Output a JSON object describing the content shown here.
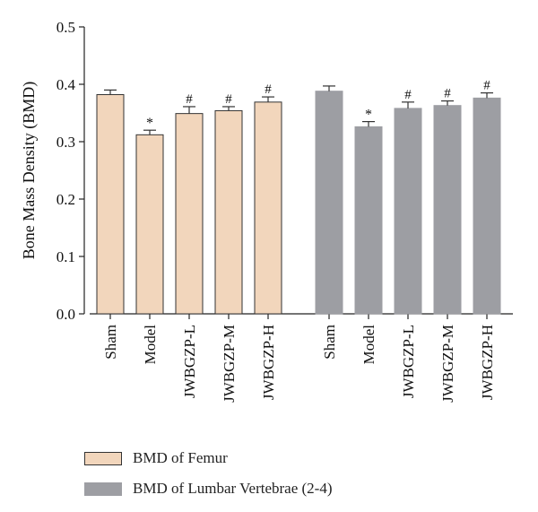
{
  "chart_data": {
    "type": "bar",
    "title": "",
    "xlabel": "",
    "ylabel": "Bone Mass Density (BMD)",
    "ylim": [
      0,
      0.5
    ],
    "yticks": [
      "0.0",
      "0.1",
      "0.2",
      "0.3",
      "0.4",
      "0.5"
    ],
    "grid": false,
    "legend_position": "bottom-left",
    "categories": [
      "Sham",
      "Model",
      "JWBGZP-L",
      "JWBGZP-M",
      "JWBGZP-H"
    ],
    "series": [
      {
        "name": "BMD of Femur",
        "color": "#f2d6bc",
        "stroke": "#333333",
        "values": [
          0.382,
          0.312,
          0.349,
          0.354,
          0.369
        ],
        "errors": [
          0.008,
          0.008,
          0.012,
          0.007,
          0.009
        ],
        "marks": [
          "",
          "*",
          "#",
          "#",
          "#"
        ]
      },
      {
        "name": "BMD of Lumbar Vertebrae (2-4)",
        "color": "#9d9ea3",
        "stroke": "#9d9ea3",
        "values": [
          0.388,
          0.326,
          0.358,
          0.363,
          0.376
        ],
        "errors": [
          0.009,
          0.009,
          0.011,
          0.008,
          0.009
        ],
        "marks": [
          "",
          "*",
          "#",
          "#",
          "#"
        ]
      }
    ]
  },
  "legend": {
    "femur_label": "BMD of Femur",
    "lumbar_label": "BMD of Lumbar Vertebrae (2-4)"
  }
}
